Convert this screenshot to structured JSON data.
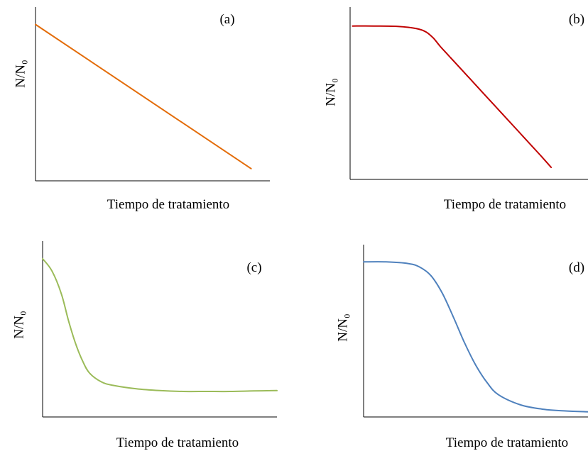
{
  "chart_data": [
    {
      "type": "line",
      "panel_label": "(a)",
      "xlabel": "Tiempo de tratamiento",
      "ylabel": "N/N₀",
      "xlim": [
        0,
        1
      ],
      "ylim": [
        0,
        1
      ],
      "grid": false,
      "series": [
        {
          "color": "#E36C09",
          "x": [
            0,
            0.92
          ],
          "y": [
            0.9,
            0.07
          ]
        }
      ]
    },
    {
      "type": "line",
      "panel_label": "(b)",
      "xlabel": "Tiempo de tratamiento",
      "ylabel": "N/N₀",
      "xlim": [
        0,
        1
      ],
      "ylim": [
        0,
        1
      ],
      "grid": false,
      "series": [
        {
          "color": "#C00000",
          "x": [
            0.01,
            0.1,
            0.2,
            0.28,
            0.32,
            0.35,
            0.38,
            0.42,
            0.5,
            0.6,
            0.7,
            0.8,
            0.845
          ],
          "y": [
            0.89,
            0.89,
            0.888,
            0.875,
            0.855,
            0.82,
            0.77,
            0.71,
            0.59,
            0.44,
            0.29,
            0.14,
            0.07
          ]
        }
      ]
    },
    {
      "type": "line",
      "panel_label": "(c)",
      "xlabel": "Tiempo de tratamiento",
      "ylabel": "N/N₀",
      "xlim": [
        0,
        1
      ],
      "ylim": [
        0,
        1
      ],
      "grid": false,
      "series": [
        {
          "color": "#9BBB59",
          "x": [
            0,
            0.04,
            0.08,
            0.11,
            0.14,
            0.17,
            0.2,
            0.25,
            0.3,
            0.4,
            0.5,
            0.6,
            0.7,
            0.8,
            0.9,
            1.0
          ],
          "y": [
            0.9,
            0.83,
            0.7,
            0.55,
            0.42,
            0.32,
            0.25,
            0.2,
            0.18,
            0.16,
            0.15,
            0.145,
            0.145,
            0.145,
            0.148,
            0.15
          ]
        }
      ]
    },
    {
      "type": "line",
      "panel_label": "(d)",
      "xlabel": "Tiempo de tratamiento",
      "ylabel": "N/N₀",
      "xlim": [
        0,
        1
      ],
      "ylim": [
        0,
        1
      ],
      "grid": false,
      "series": [
        {
          "color": "#4F81BD",
          "x": [
            0,
            0.1,
            0.2,
            0.25,
            0.3,
            0.35,
            0.4,
            0.45,
            0.5,
            0.55,
            0.6,
            0.7,
            0.8,
            0.9,
            1.0
          ],
          "y": [
            0.9,
            0.9,
            0.89,
            0.87,
            0.82,
            0.72,
            0.58,
            0.43,
            0.3,
            0.2,
            0.13,
            0.07,
            0.045,
            0.035,
            0.03
          ]
        }
      ]
    }
  ]
}
